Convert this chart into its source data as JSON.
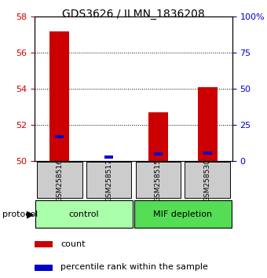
{
  "title": "GDS3626 / ILMN_1836208",
  "samples": [
    "GSM258516",
    "GSM258517",
    "GSM258515",
    "GSM258530"
  ],
  "red_values": [
    57.2,
    50.0,
    52.7,
    54.1
  ],
  "blue_values": [
    51.35,
    50.22,
    50.42,
    50.45
  ],
  "ylim_left": [
    50,
    58
  ],
  "yticks_left": [
    50,
    52,
    54,
    56,
    58
  ],
  "yticks_right": [
    0,
    25,
    50,
    75,
    100
  ],
  "ylim_right": [
    0,
    100
  ],
  "groups": [
    {
      "label": "control",
      "color": "#aaffaa"
    },
    {
      "label": "MIF depletion",
      "color": "#55dd55"
    }
  ],
  "bar_width": 0.4,
  "red_color": "#cc0000",
  "blue_color": "#0000cc",
  "left_tick_color": "#cc0000",
  "right_tick_color": "#0000cc",
  "sample_box_color": "#cccccc",
  "protocol_label": "protocol",
  "legend_items": [
    "count",
    "percentile rank within the sample"
  ]
}
